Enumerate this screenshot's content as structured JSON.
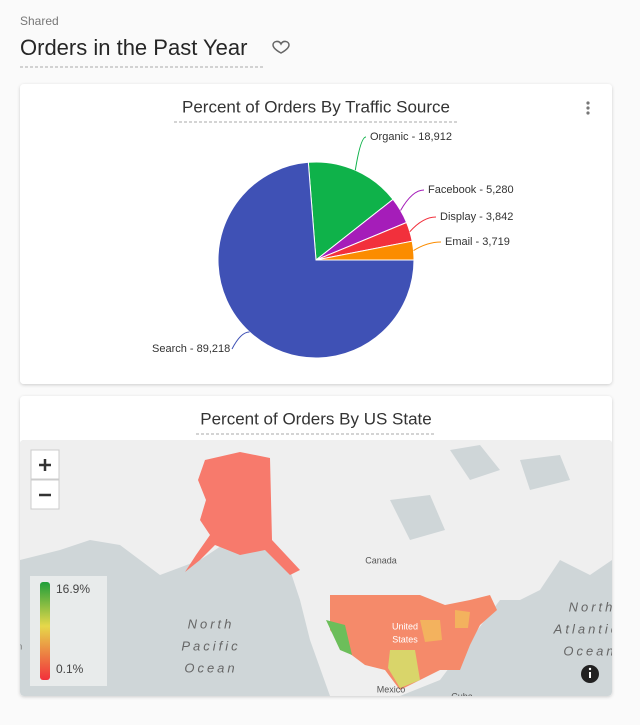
{
  "header": {
    "breadcrumb": "Shared",
    "title": "Orders in the Past Year"
  },
  "chart_data": {
    "type": "pie",
    "title": "Percent of Orders By Traffic Source",
    "values": [
      18912,
      5280,
      3842,
      3719,
      89218
    ],
    "value_labels": [
      "Organic - 18,912",
      "Facebook - 5,280",
      "Display - 3,842",
      "Email - 3,719",
      "Search - 89,218"
    ],
    "colors": [
      "#0fb24a",
      "#a51db9",
      "#f2303c",
      "#fb8c00",
      "#3f51b5"
    ]
  },
  "map": {
    "title": "Percent of Orders By US State",
    "legend_labels": [
      "16.9%",
      "0.1%"
    ],
    "labels": [
      "Canada",
      "North",
      "Pacific",
      "Ocean",
      "United",
      "States",
      "Mexico",
      "North",
      "Atlantic",
      "Ocean",
      "Japan",
      "Cuba"
    ]
  }
}
